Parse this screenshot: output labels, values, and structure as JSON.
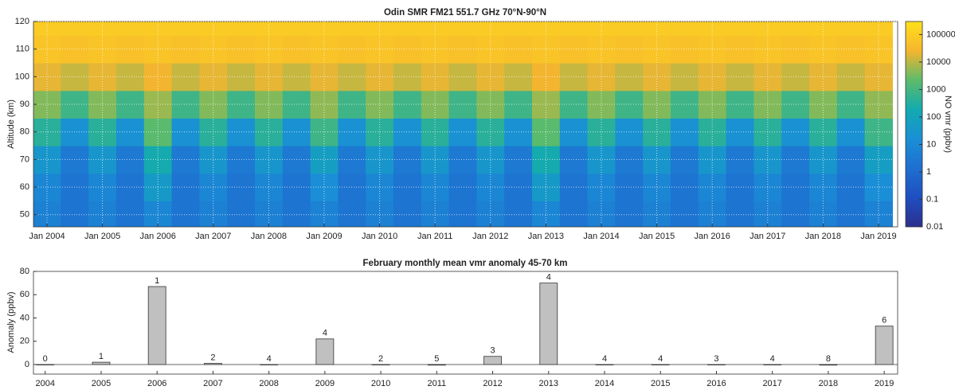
{
  "chart_data": [
    {
      "type": "heatmap",
      "title": "Odin SMR   FM21   551.7 GHz   70°N-90°N",
      "y_label": "Altitude  (km)",
      "colorbar_label": "NO vmr  (ppbv)",
      "x": [
        2004,
        2004.5,
        2005,
        2005.5,
        2006,
        2006.5,
        2007,
        2007.5,
        2008,
        2008.5,
        2009,
        2009.5,
        2010,
        2010.5,
        2011,
        2011.5,
        2012,
        2012.5,
        2013,
        2013.5,
        2014,
        2014.5,
        2015,
        2015.5,
        2016,
        2016.5,
        2017,
        2017.5,
        2018,
        2018.5,
        2019
      ],
      "y": [
        50,
        60,
        70,
        80,
        90,
        100,
        110,
        120
      ],
      "z": [
        [
          5,
          8,
          30,
          400,
          4000,
          20000,
          60000,
          90000
        ],
        [
          2,
          2,
          3,
          20,
          800,
          12000,
          50000,
          90000
        ],
        [
          5,
          8,
          30,
          400,
          4000,
          20000,
          60000,
          90000
        ],
        [
          2,
          2,
          3,
          20,
          800,
          12000,
          50000,
          90000
        ],
        [
          8,
          40,
          200,
          2000,
          6000,
          25000,
          60000,
          90000
        ],
        [
          2,
          2,
          3,
          20,
          800,
          12000,
          50000,
          90000
        ],
        [
          5,
          8,
          30,
          400,
          4000,
          20000,
          60000,
          90000
        ],
        [
          2,
          2,
          3,
          20,
          800,
          12000,
          50000,
          90000
        ],
        [
          5,
          8,
          30,
          400,
          4000,
          20000,
          60000,
          90000
        ],
        [
          2,
          2,
          3,
          20,
          800,
          12000,
          50000,
          90000
        ],
        [
          6,
          15,
          60,
          800,
          5000,
          20000,
          60000,
          90000
        ],
        [
          2,
          2,
          3,
          20,
          800,
          12000,
          50000,
          90000
        ],
        [
          5,
          8,
          30,
          400,
          4000,
          20000,
          60000,
          90000
        ],
        [
          2,
          2,
          3,
          20,
          800,
          12000,
          50000,
          90000
        ],
        [
          5,
          8,
          30,
          400,
          4000,
          20000,
          60000,
          90000
        ],
        [
          2,
          2,
          3,
          20,
          800,
          12000,
          50000,
          90000
        ],
        [
          5,
          8,
          30,
          400,
          4000,
          20000,
          60000,
          90000
        ],
        [
          2,
          2,
          3,
          20,
          800,
          12000,
          50000,
          90000
        ],
        [
          8,
          40,
          200,
          2000,
          6000,
          25000,
          60000,
          90000
        ],
        [
          2,
          2,
          3,
          20,
          800,
          12000,
          50000,
          90000
        ],
        [
          5,
          8,
          30,
          400,
          4000,
          20000,
          60000,
          90000
        ],
        [
          2,
          2,
          3,
          20,
          800,
          12000,
          50000,
          90000
        ],
        [
          5,
          8,
          30,
          400,
          4000,
          20000,
          60000,
          90000
        ],
        [
          2,
          2,
          3,
          20,
          800,
          12000,
          50000,
          90000
        ],
        [
          5,
          8,
          30,
          400,
          4000,
          20000,
          60000,
          90000
        ],
        [
          2,
          2,
          3,
          20,
          800,
          12000,
          50000,
          90000
        ],
        [
          5,
          8,
          30,
          400,
          4000,
          20000,
          60000,
          90000
        ],
        [
          2,
          2,
          3,
          20,
          800,
          12000,
          50000,
          90000
        ],
        [
          5,
          8,
          30,
          400,
          4000,
          20000,
          60000,
          90000
        ],
        [
          2,
          2,
          3,
          20,
          800,
          12000,
          50000,
          90000
        ],
        [
          6,
          15,
          60,
          800,
          5000,
          20000,
          60000,
          90000
        ]
      ],
      "xlim": [
        2003.756,
        2019.345
      ],
      "xticks": [
        {
          "value": 2004,
          "label": "Jan 2004"
        },
        {
          "value": 2005,
          "label": "Jan 2005"
        },
        {
          "value": 2006,
          "label": "Jan 2006"
        },
        {
          "value": 2007,
          "label": "Jan 2007"
        },
        {
          "value": 2008,
          "label": "Jan 2008"
        },
        {
          "value": 2009,
          "label": "Jan 2009"
        },
        {
          "value": 2010,
          "label": "Jan 2010"
        },
        {
          "value": 2011,
          "label": "Jan 2011"
        },
        {
          "value": 2012,
          "label": "Jan 2012"
        },
        {
          "value": 2013,
          "label": "Jan 2013"
        },
        {
          "value": 2014,
          "label": "Jan 2014"
        },
        {
          "value": 2015,
          "label": "Jan 2015"
        },
        {
          "value": 2016,
          "label": "Jan 2016"
        },
        {
          "value": 2017,
          "label": "Jan 2017"
        },
        {
          "value": 2018,
          "label": "Jan 2018"
        },
        {
          "value": 2019,
          "label": "Jan 2019"
        }
      ],
      "ylim": [
        45.6,
        120
      ],
      "yticks": [
        50,
        60,
        70,
        80,
        90,
        100,
        110,
        120
      ],
      "zlim": [
        0.01,
        300000
      ],
      "zscale": "log",
      "zticks": [
        0.01,
        0.1,
        1,
        10,
        100,
        1000,
        10000,
        100000
      ],
      "colormap": [
        "#2b2f8e",
        "#1f4fc0",
        "#1e6fd0",
        "#1a8fd6",
        "#13aab0",
        "#5dbb6a",
        "#f5b52e",
        "#ffe01a"
      ],
      "grid": true
    },
    {
      "type": "bar",
      "title": "February monthly mean vmr anomaly    45-70 km",
      "y_label": "Anomaly  (ppbv)",
      "x": [
        2004,
        2005,
        2006,
        2007,
        2008,
        2009,
        2010,
        2011,
        2012,
        2013,
        2014,
        2015,
        2016,
        2017,
        2018,
        2019
      ],
      "values": [
        0,
        2,
        67,
        1,
        0,
        22,
        0,
        -0.5,
        7,
        70,
        0,
        0,
        0,
        0,
        -0.5,
        33
      ],
      "annotations": [
        "0",
        "1",
        "1",
        "2",
        "4",
        "4",
        "2",
        "5",
        "3",
        "4",
        "4",
        "4",
        "3",
        "4",
        "8",
        "6"
      ],
      "color": "#c0c0c0",
      "xlim": [
        2003.79,
        2019.24
      ],
      "xticks": [
        2004,
        2005,
        2006,
        2007,
        2008,
        2009,
        2010,
        2011,
        2012,
        2013,
        2014,
        2015,
        2016,
        2017,
        2018,
        2019
      ],
      "ylim": [
        -8.2,
        80
      ],
      "yticks": [
        0,
        20,
        40,
        60,
        80
      ]
    }
  ]
}
